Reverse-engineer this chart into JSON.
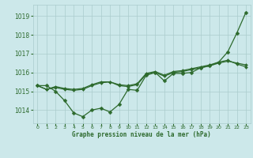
{
  "title": "Graphe pression niveau de la mer (hPa)",
  "background_color": "#cce8ea",
  "grid_color": "#aacccc",
  "line_color": "#2d6a2d",
  "marker_color": "#2d6a2d",
  "xlim": [
    -0.5,
    23.5
  ],
  "ylim": [
    1013.3,
    1019.6
  ],
  "yticks": [
    1014,
    1015,
    1016,
    1017,
    1018,
    1019
  ],
  "xticks": [
    0,
    1,
    2,
    3,
    4,
    5,
    6,
    7,
    8,
    9,
    10,
    11,
    12,
    13,
    14,
    15,
    16,
    17,
    18,
    19,
    20,
    21,
    22,
    23
  ],
  "series": [
    {
      "x": [
        0,
        1,
        2,
        3,
        4,
        5,
        6,
        7,
        8,
        9,
        10,
        11,
        12,
        13,
        14,
        15,
        16,
        17,
        18,
        19,
        20,
        21,
        22,
        23
      ],
      "y": [
        1015.3,
        1015.3,
        1015.0,
        1014.5,
        1013.85,
        1013.65,
        1014.0,
        1014.1,
        1013.9,
        1014.3,
        1015.1,
        1015.05,
        1015.85,
        1016.0,
        1015.55,
        1015.95,
        1015.95,
        1016.0,
        1016.25,
        1016.35,
        1016.55,
        1017.1,
        1018.1,
        1019.2
      ],
      "lw": 0.9,
      "ms": 2.5
    },
    {
      "x": [
        0,
        1,
        2,
        3,
        4,
        5,
        6,
        7,
        8,
        9,
        10,
        11,
        12,
        13,
        14,
        15,
        16,
        17,
        18,
        19,
        20,
        21,
        22,
        23
      ],
      "y": [
        1015.3,
        1015.1,
        1015.25,
        1015.15,
        1015.1,
        1015.15,
        1015.35,
        1015.5,
        1015.5,
        1015.35,
        1015.3,
        1015.4,
        1015.95,
        1016.05,
        1015.85,
        1016.05,
        1016.1,
        1016.2,
        1016.3,
        1016.4,
        1016.55,
        1016.65,
        1016.45,
        1016.3
      ],
      "lw": 0.9,
      "ms": 2.0
    },
    {
      "x": [
        0,
        1,
        2,
        3,
        4,
        5,
        6,
        7,
        8,
        9,
        10,
        11,
        12,
        13,
        14,
        15,
        16,
        17,
        18,
        19,
        20,
        21,
        22,
        23
      ],
      "y": [
        1015.3,
        1015.1,
        1015.2,
        1015.1,
        1015.05,
        1015.1,
        1015.3,
        1015.45,
        1015.5,
        1015.3,
        1015.25,
        1015.35,
        1015.9,
        1016.0,
        1015.8,
        1016.0,
        1016.05,
        1016.15,
        1016.25,
        1016.35,
        1016.5,
        1016.6,
        1016.5,
        1016.4
      ],
      "lw": 0.9,
      "ms": 2.0
    }
  ]
}
